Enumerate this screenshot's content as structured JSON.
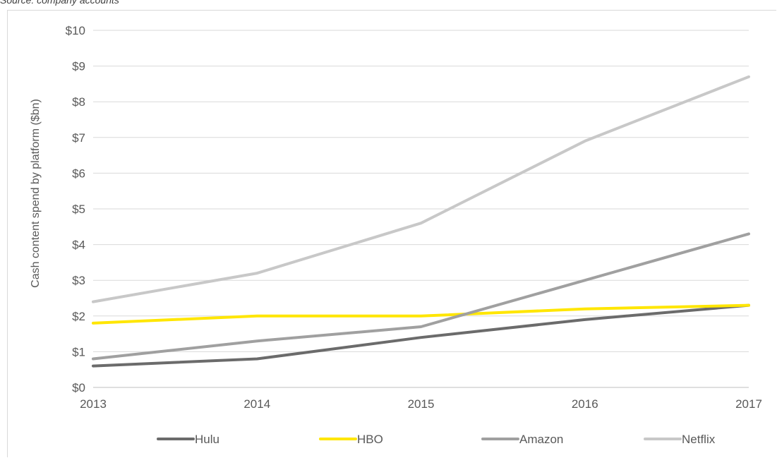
{
  "source_note": "Source: company accounts",
  "chart_data": {
    "type": "line",
    "title": "",
    "xlabel": "",
    "ylabel": "Cash content spend by platform ($bn)",
    "categories": [
      "2013",
      "2014",
      "2015",
      "2016",
      "2017"
    ],
    "ylim": [
      0,
      10
    ],
    "yticks": [
      "$0",
      "$1",
      "$2",
      "$3",
      "$4",
      "$5",
      "$6",
      "$7",
      "$8",
      "$9",
      "$10"
    ],
    "grid": true,
    "legend_position": "bottom",
    "series": [
      {
        "name": "Hulu",
        "color": "#6b6b6b",
        "values": [
          0.6,
          0.8,
          1.4,
          1.9,
          2.3
        ]
      },
      {
        "name": "HBO",
        "color": "#ffe600",
        "values": [
          1.8,
          2.0,
          2.0,
          2.2,
          2.3
        ]
      },
      {
        "name": "Amazon",
        "color": "#a0a0a0",
        "values": [
          0.8,
          1.3,
          1.7,
          3.0,
          4.3
        ]
      },
      {
        "name": "Netflix",
        "color": "#c8c8c8",
        "values": [
          2.4,
          3.2,
          4.6,
          6.9,
          8.7
        ]
      }
    ]
  }
}
